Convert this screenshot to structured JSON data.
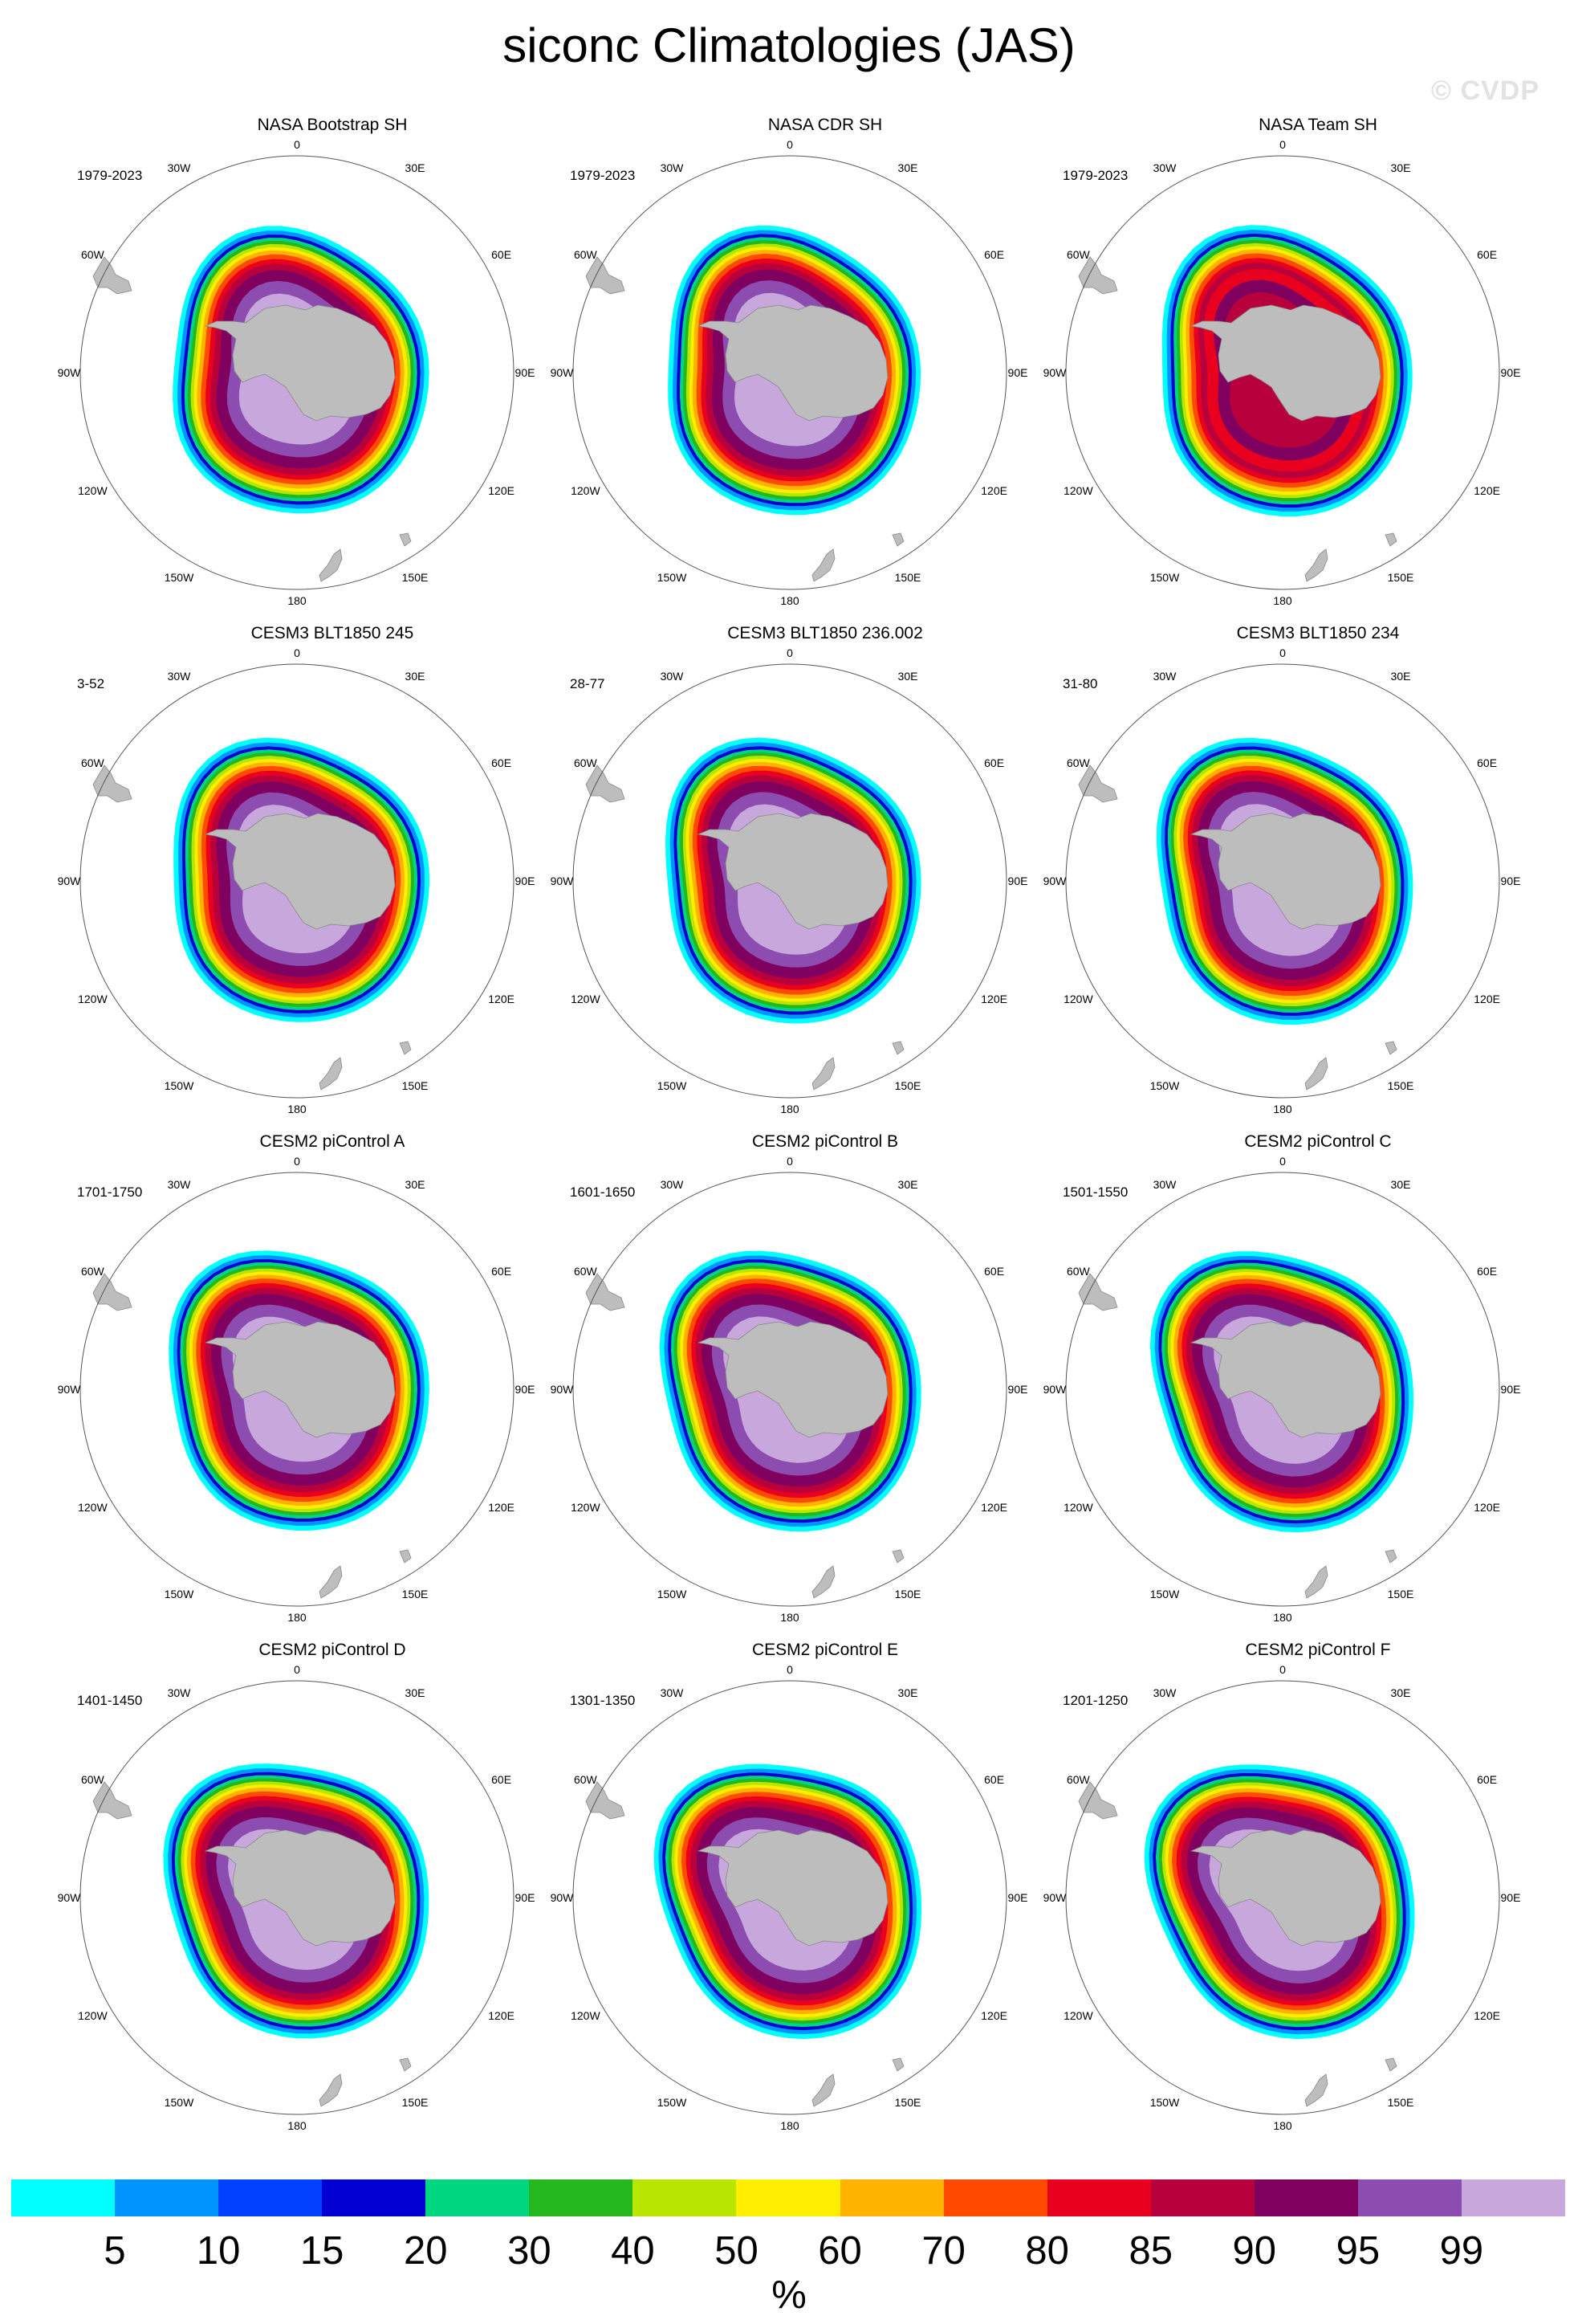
{
  "title": "siconc Climatologies (JAS)",
  "watermark": "© CVDP",
  "lon_labels": {
    "l0": "0",
    "l30e": "30E",
    "l60e": "60E",
    "l90e": "90E",
    "l120e": "120E",
    "l150e": "150E",
    "l180": "180",
    "l150w": "150W",
    "l120w": "120W",
    "l90w": "90W",
    "l60w": "60W",
    "l30w": "30W"
  },
  "panels": [
    {
      "name": "NASA Bootstrap SH",
      "period": "1979-2023"
    },
    {
      "name": "NASA CDR SH",
      "period": "1979-2023"
    },
    {
      "name": "NASA Team SH",
      "period": "1979-2023"
    },
    {
      "name": "CESM3 BLT1850 245",
      "period": "3-52"
    },
    {
      "name": "CESM3 BLT1850 236.002",
      "period": "28-77"
    },
    {
      "name": "CESM3 BLT1850 234",
      "period": "31-80"
    },
    {
      "name": "CESM2 piControl A",
      "period": "1701-1750"
    },
    {
      "name": "CESM2 piControl B",
      "period": "1601-1650"
    },
    {
      "name": "CESM2 piControl C",
      "period": "1501-1550"
    },
    {
      "name": "CESM2 piControl D",
      "period": "1401-1450"
    },
    {
      "name": "CESM2 piControl E",
      "period": "1301-1350"
    },
    {
      "name": "CESM2 piControl F",
      "period": "1201-1250"
    }
  ],
  "colorbar": {
    "colors": [
      "#00ffff",
      "#0094ff",
      "#0040ff",
      "#0000d2",
      "#00d680",
      "#24b81e",
      "#b8e600",
      "#ffee00",
      "#ffb200",
      "#ff4a00",
      "#e8001e",
      "#b8003c",
      "#800060",
      "#8c4cb0",
      "#c8a8dc"
    ],
    "tick_labels": [
      "5",
      "10",
      "15",
      "20",
      "30",
      "40",
      "50",
      "60",
      "70",
      "80",
      "85",
      "90",
      "95",
      "99"
    ],
    "units": "%"
  }
}
